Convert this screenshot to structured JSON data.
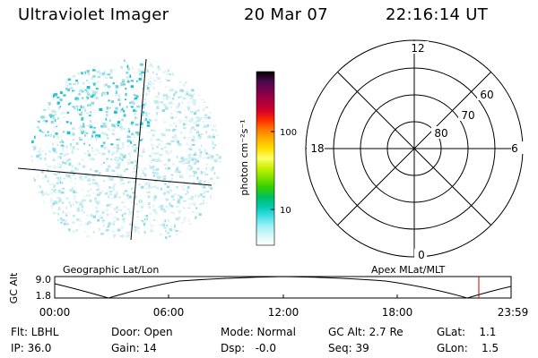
{
  "header": {
    "title": "Ultraviolet Imager",
    "date": "20 Mar 07",
    "time": "22:16:14 UT"
  },
  "colorbar": {
    "label": "photon cm⁻²s⁻¹",
    "ticks": [
      "100",
      "10"
    ],
    "colors": [
      "#000000",
      "#4a0a4a",
      "#7a0050",
      "#a8003c",
      "#d0002a",
      "#ff2a00",
      "#ff7a00",
      "#ffb000",
      "#ffe000",
      "#ffff66",
      "#c8f000",
      "#7ee000",
      "#30d000",
      "#00c060",
      "#00c8b0",
      "#40e0e8",
      "#9ff0f4",
      "#d8f8fa",
      "#ffffff"
    ]
  },
  "polar": {
    "mlt_labels": [
      "12",
      "18",
      "6",
      "0"
    ],
    "lat_labels": [
      "60",
      "70",
      "80"
    ]
  },
  "timeline": {
    "y_label": "GC Alt",
    "y_ticks": [
      "9.0",
      "1.8"
    ],
    "left_label": "Geographic Lat/Lon",
    "right_label": "Apex  MLat/MLT",
    "x_ticks": [
      "00:00",
      "06:00",
      "12:00",
      "18:00",
      "23:59"
    ],
    "marker_color": "#cc0000"
  },
  "info": {
    "flt": "Flt: LBHL",
    "ip": "IP: 36.0",
    "door": "Door: Open",
    "gain": "Gain: 14",
    "mode": "Mode: Normal",
    "dsp": "Dsp:   -0.0",
    "gc_alt": "GC Alt: 2.7 Re",
    "seq": "Seq: 39",
    "glat": "GLat:    1.1",
    "glon": "GLon:    1.5"
  }
}
